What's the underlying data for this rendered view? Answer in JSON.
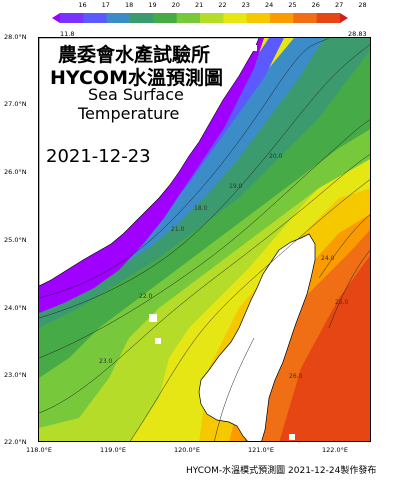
{
  "colorbar": {
    "min_label": "11.8",
    "max_label": "28.83",
    "tick_labels": [
      "16",
      "17",
      "18",
      "19",
      "20",
      "21",
      "22",
      "23",
      "24",
      "25",
      "26",
      "27",
      "28"
    ],
    "colors": [
      "#a000ff",
      "#7a32ff",
      "#5a5aff",
      "#3c8cc8",
      "#3c9b6e",
      "#46aa46",
      "#78c83c",
      "#b4dc28",
      "#e6e614",
      "#f5c800",
      "#fa9b00",
      "#f06e14",
      "#e64614",
      "#d21e1e"
    ]
  },
  "axes": {
    "y_ticks": [
      "28.0°N",
      "27.0°N",
      "26.0°N",
      "25.0°N",
      "24.0°N",
      "23.0°N",
      "22.0°N"
    ],
    "x_ticks": [
      "118.0°E",
      "119.0°E",
      "120.0°E",
      "121.0°E",
      "122.0°E"
    ]
  },
  "titles": {
    "agency": "農委會水產試驗所",
    "product": "HYCOM水溫預測圖",
    "line3": "Sea Surface",
    "line4": "Temperature",
    "date": "2021-12-23"
  },
  "contour_labels": [
    "21.0",
    "22.0",
    "23.0",
    "24.0",
    "25.0",
    "26.0",
    "18.0",
    "19.0",
    "20.0"
  ],
  "footer": "HYCOM-水溫模式預測圖 2021-12-24製作發布"
}
